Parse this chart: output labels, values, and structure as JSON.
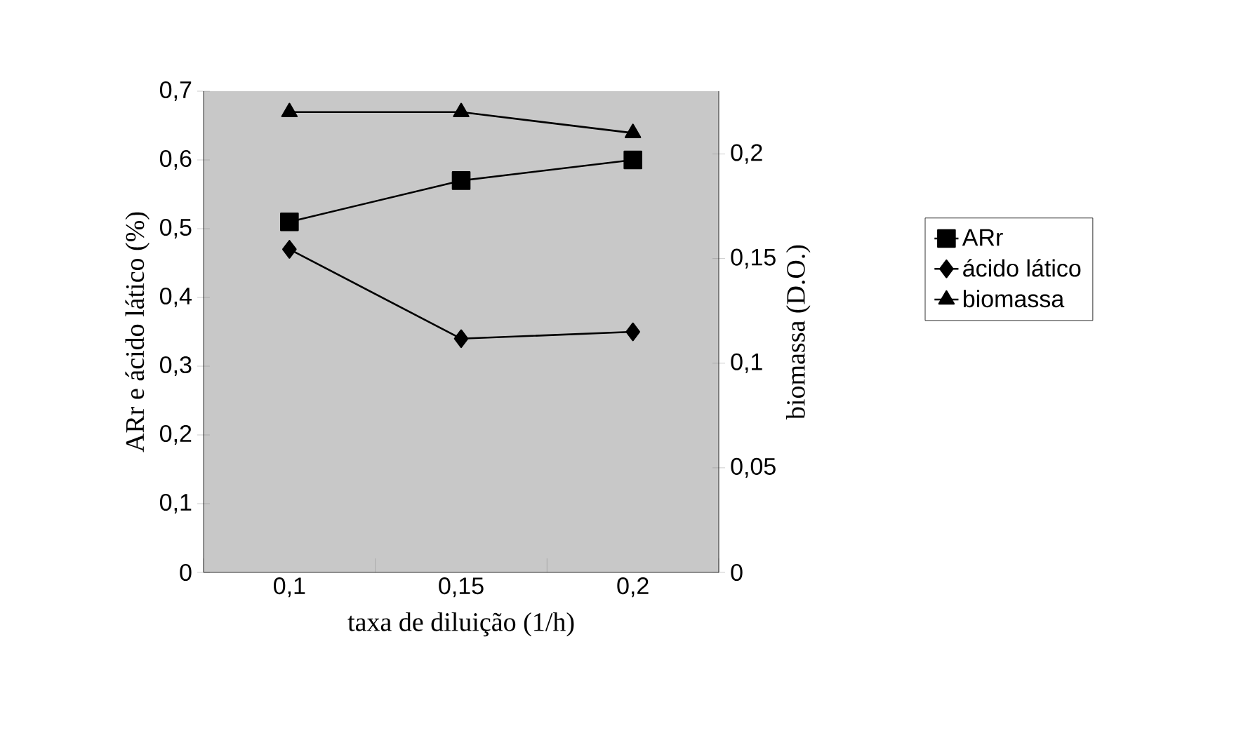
{
  "chart_data": {
    "type": "line",
    "xlabel": "taxa de diluição (1/h)",
    "ylabel": "ARr e ácido lático (%)",
    "y2label": "biomassa (D.O.)",
    "categories": [
      "0,1",
      "0,15",
      "0,2"
    ],
    "series": [
      {
        "name": "ARr",
        "color": "#000000",
        "marker": "square",
        "values": [
          0.51,
          0.57,
          0.6
        ]
      },
      {
        "name": "ácido lático",
        "color": "#000000",
        "marker": "diamond",
        "values": [
          0.47,
          0.34,
          0.35
        ]
      },
      {
        "name": "biomassa",
        "color": "#000000",
        "marker": "triangle",
        "axis": "y2",
        "values": [
          0.22,
          0.22,
          0.21
        ]
      }
    ],
    "ylim": [
      0,
      0.7
    ],
    "yticks": [
      {
        "value": 0,
        "label": "0"
      },
      {
        "value": 0.1,
        "label": "0,1"
      },
      {
        "value": 0.2,
        "label": "0,2"
      },
      {
        "value": 0.3,
        "label": "0,3"
      },
      {
        "value": 0.4,
        "label": "0,4"
      },
      {
        "value": 0.5,
        "label": "0,5"
      },
      {
        "value": 0.6,
        "label": "0,6"
      },
      {
        "value": 0.7,
        "label": "0,7"
      }
    ],
    "y2lim": [
      0,
      0.23
    ],
    "y2ticks": [
      {
        "value": 0,
        "label": "0"
      },
      {
        "value": 0.05,
        "label": "0,05"
      },
      {
        "value": 0.1,
        "label": "0,1"
      },
      {
        "value": 0.15,
        "label": "0,15"
      },
      {
        "value": 0.2,
        "label": "0,2"
      }
    ],
    "legend": "right",
    "grid": false,
    "line_style": "solid"
  }
}
